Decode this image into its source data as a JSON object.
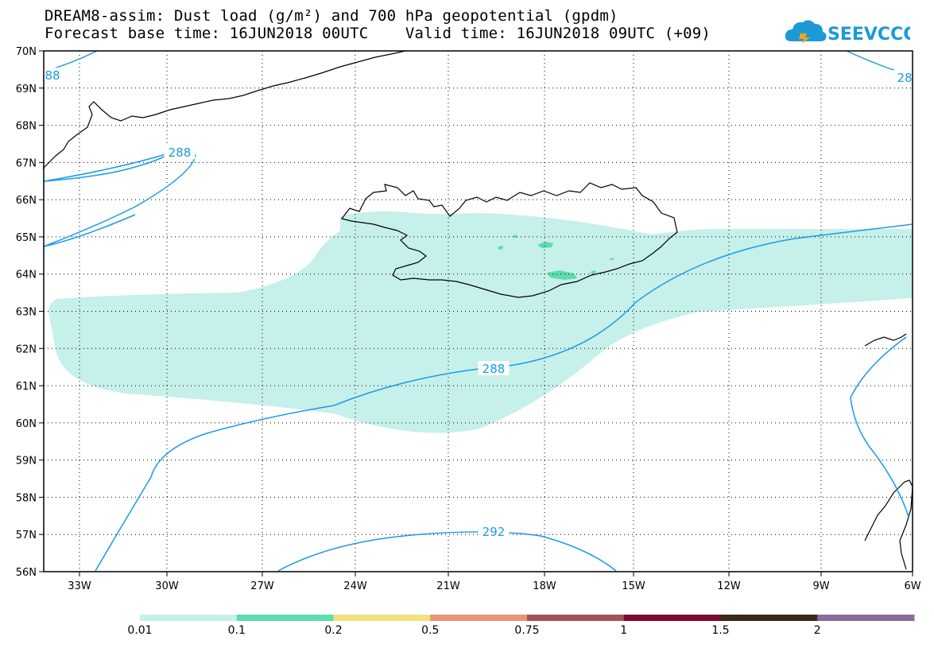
{
  "title": {
    "line1": "DREAM8-assim: Dust load (g/m²) and 700 hPa geopotential (gpdm)",
    "line2": "Forecast base time: 16JUN2018 00UTC    Valid time: 16JUN2018 09UTC (+09)"
  },
  "logo": {
    "text": "SEEVCCC",
    "icon": "cloud-icon",
    "color": "#1c9ad6"
  },
  "map": {
    "lon_labels": [
      "33W",
      "30W",
      "27W",
      "24W",
      "21W",
      "18W",
      "15W",
      "12W",
      "9W",
      "6W"
    ],
    "lat_labels": [
      "70N",
      "69N",
      "68N",
      "67N",
      "66N",
      "65N",
      "64N",
      "63N",
      "62N",
      "61N",
      "60N",
      "59N",
      "58N",
      "57N",
      "56N"
    ],
    "contour_color": "#1a9ae6",
    "contour_labels": [
      "88",
      "288",
      "288",
      "292",
      "28"
    ]
  },
  "colorbar": {
    "colors": [
      "#c6f0ea",
      "#5ddcb0",
      "#f2e27c",
      "#e89476",
      "#a65252",
      "#7c0a30",
      "#3a2a1c",
      "#8c6a9c"
    ],
    "labels": [
      "0.01",
      "0.1",
      "0.2",
      "0.5",
      "0.75",
      "1",
      "1.5",
      "2"
    ]
  }
}
